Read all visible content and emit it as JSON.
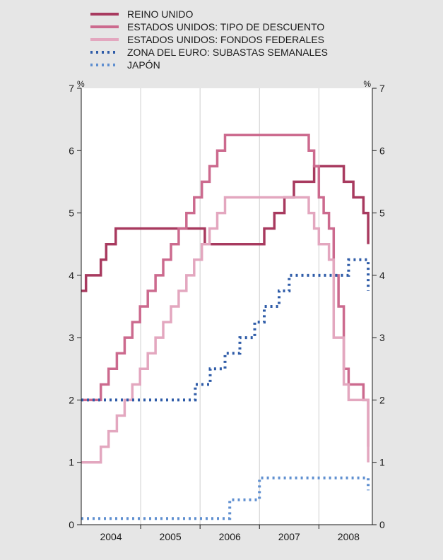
{
  "chart_data": {
    "type": "line",
    "y_unit_left": "%",
    "y_unit_right": "%",
    "ylim": [
      0,
      7
    ],
    "yticks": [
      "0",
      "1",
      "2",
      "3",
      "4",
      "5",
      "6",
      "7"
    ],
    "xlim": [
      2003.5,
      2008.4
    ],
    "xticks": [
      {
        "label": "2004",
        "value": 2004
      },
      {
        "label": "2005",
        "value": 2005
      },
      {
        "label": "2006",
        "value": 2006
      },
      {
        "label": "2007",
        "value": 2007
      },
      {
        "label": "2008",
        "value": 2008
      }
    ],
    "grid": "vertical",
    "legend_position": "top",
    "series": [
      {
        "name": "REINO UNIDO",
        "color": "#a83a5f",
        "style": "solid",
        "points": [
          [
            2003.5,
            3.75
          ],
          [
            2003.58,
            4.0
          ],
          [
            2003.83,
            4.25
          ],
          [
            2003.92,
            4.5
          ],
          [
            2004.08,
            4.75
          ],
          [
            2005.58,
            4.5
          ],
          [
            2006.58,
            4.75
          ],
          [
            2006.75,
            5.0
          ],
          [
            2006.92,
            5.25
          ],
          [
            2007.08,
            5.5
          ],
          [
            2007.42,
            5.75
          ],
          [
            2007.92,
            5.5
          ],
          [
            2008.08,
            5.25
          ],
          [
            2008.25,
            5.0
          ],
          [
            2008.33,
            4.5
          ]
        ]
      },
      {
        "name": "ESTADOS UNIDOS: TIPO DE DESCUENTO",
        "color": "#cc6a8e",
        "style": "solid",
        "points": [
          [
            2003.5,
            2.0
          ],
          [
            2003.83,
            2.25
          ],
          [
            2003.96,
            2.5
          ],
          [
            2004.1,
            2.75
          ],
          [
            2004.23,
            3.0
          ],
          [
            2004.36,
            3.25
          ],
          [
            2004.49,
            3.5
          ],
          [
            2004.62,
            3.75
          ],
          [
            2004.75,
            4.0
          ],
          [
            2004.88,
            4.25
          ],
          [
            2005.01,
            4.5
          ],
          [
            2005.14,
            4.75
          ],
          [
            2005.27,
            5.0
          ],
          [
            2005.4,
            5.25
          ],
          [
            2005.53,
            5.5
          ],
          [
            2005.66,
            5.75
          ],
          [
            2005.79,
            6.0
          ],
          [
            2005.92,
            6.25
          ],
          [
            2007.33,
            6.0
          ],
          [
            2007.42,
            5.75
          ],
          [
            2007.5,
            5.25
          ],
          [
            2007.58,
            5.0
          ],
          [
            2007.67,
            4.75
          ],
          [
            2007.75,
            4.0
          ],
          [
            2007.83,
            3.5
          ],
          [
            2007.92,
            2.5
          ],
          [
            2008.0,
            2.25
          ],
          [
            2008.25,
            2.0
          ],
          [
            2008.33,
            1.25
          ]
        ]
      },
      {
        "name": "ESTADOS UNIDOS: FONDOS FEDERALES",
        "color": "#e3a7bf",
        "style": "solid",
        "points": [
          [
            2003.5,
            1.0
          ],
          [
            2003.83,
            1.25
          ],
          [
            2003.96,
            1.5
          ],
          [
            2004.1,
            1.75
          ],
          [
            2004.23,
            2.0
          ],
          [
            2004.36,
            2.25
          ],
          [
            2004.49,
            2.5
          ],
          [
            2004.62,
            2.75
          ],
          [
            2004.75,
            3.0
          ],
          [
            2004.88,
            3.25
          ],
          [
            2005.01,
            3.5
          ],
          [
            2005.14,
            3.75
          ],
          [
            2005.27,
            4.0
          ],
          [
            2005.4,
            4.25
          ],
          [
            2005.53,
            4.5
          ],
          [
            2005.66,
            4.75
          ],
          [
            2005.79,
            5.0
          ],
          [
            2005.92,
            5.25
          ],
          [
            2007.33,
            5.0
          ],
          [
            2007.42,
            4.75
          ],
          [
            2007.5,
            4.5
          ],
          [
            2007.67,
            4.25
          ],
          [
            2007.75,
            3.0
          ],
          [
            2007.92,
            2.25
          ],
          [
            2008.0,
            2.0
          ],
          [
            2008.25,
            2.0
          ],
          [
            2008.33,
            1.0
          ]
        ]
      },
      {
        "name": "ZONA DEL EURO: SUBASTAS SEMANALES",
        "color": "#2f5ca8",
        "style": "dotted",
        "points": [
          [
            2003.5,
            2.0
          ],
          [
            2005.42,
            2.0
          ],
          [
            2005.42,
            2.25
          ],
          [
            2005.67,
            2.5
          ],
          [
            2005.92,
            2.75
          ],
          [
            2006.17,
            3.0
          ],
          [
            2006.42,
            3.25
          ],
          [
            2006.58,
            3.5
          ],
          [
            2006.83,
            3.75
          ],
          [
            2007.0,
            4.0
          ],
          [
            2007.92,
            4.0
          ],
          [
            2008.0,
            4.25
          ],
          [
            2008.17,
            4.25
          ],
          [
            2008.33,
            3.75
          ]
        ]
      },
      {
        "name": "JAPÓN",
        "color": "#5f8fd0",
        "style": "dotted",
        "points": [
          [
            2003.5,
            0.1
          ],
          [
            2006.0,
            0.1
          ],
          [
            2006.0,
            0.4
          ],
          [
            2006.5,
            0.4
          ],
          [
            2006.5,
            0.75
          ],
          [
            2008.25,
            0.75
          ],
          [
            2008.33,
            0.55
          ]
        ]
      }
    ]
  }
}
